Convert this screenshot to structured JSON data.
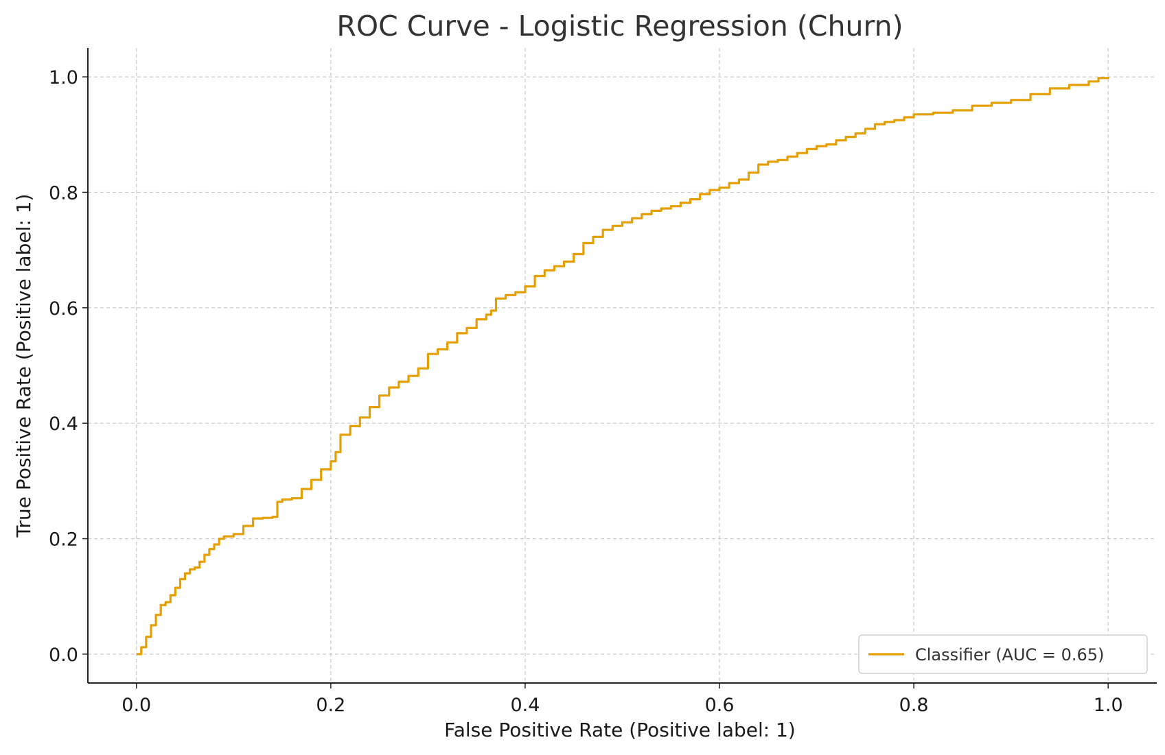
{
  "chart_data": {
    "type": "line",
    "title": "ROC Curve - Logistic Regression (Churn)",
    "xlabel": "False Positive Rate (Positive label: 1)",
    "ylabel": "True Positive Rate (Positive label: 1)",
    "xlim": [
      -0.05,
      1.05
    ],
    "ylim": [
      -0.05,
      1.05
    ],
    "xticks": [
      "0.0",
      "0.2",
      "0.4",
      "0.6",
      "0.8",
      "1.0"
    ],
    "yticks": [
      "0.0",
      "0.2",
      "0.4",
      "0.6",
      "0.8",
      "1.0"
    ],
    "grid": true,
    "legend_position": "lower-right",
    "series": [
      {
        "name": "Classifier (AUC = 0.65)",
        "color": "#e69f00",
        "x": [
          0.0,
          0.005,
          0.01,
          0.015,
          0.02,
          0.025,
          0.03,
          0.035,
          0.04,
          0.045,
          0.05,
          0.055,
          0.06,
          0.065,
          0.07,
          0.075,
          0.08,
          0.085,
          0.09,
          0.1,
          0.11,
          0.12,
          0.13,
          0.14,
          0.145,
          0.15,
          0.16,
          0.17,
          0.18,
          0.19,
          0.2,
          0.205,
          0.21,
          0.22,
          0.23,
          0.24,
          0.25,
          0.26,
          0.27,
          0.28,
          0.29,
          0.3,
          0.31,
          0.32,
          0.33,
          0.34,
          0.35,
          0.36,
          0.365,
          0.37,
          0.38,
          0.39,
          0.4,
          0.41,
          0.42,
          0.43,
          0.44,
          0.45,
          0.46,
          0.47,
          0.48,
          0.49,
          0.5,
          0.51,
          0.52,
          0.53,
          0.54,
          0.55,
          0.56,
          0.57,
          0.58,
          0.59,
          0.6,
          0.61,
          0.62,
          0.63,
          0.64,
          0.65,
          0.66,
          0.67,
          0.68,
          0.69,
          0.7,
          0.71,
          0.72,
          0.73,
          0.74,
          0.75,
          0.76,
          0.77,
          0.78,
          0.79,
          0.8,
          0.82,
          0.84,
          0.86,
          0.88,
          0.9,
          0.92,
          0.94,
          0.96,
          0.98,
          0.99,
          1.0
        ],
        "y": [
          0.0,
          0.012,
          0.03,
          0.05,
          0.068,
          0.085,
          0.09,
          0.102,
          0.115,
          0.13,
          0.14,
          0.147,
          0.15,
          0.16,
          0.172,
          0.182,
          0.19,
          0.2,
          0.204,
          0.208,
          0.222,
          0.235,
          0.236,
          0.238,
          0.264,
          0.268,
          0.27,
          0.286,
          0.302,
          0.32,
          0.334,
          0.35,
          0.38,
          0.395,
          0.41,
          0.428,
          0.448,
          0.462,
          0.472,
          0.482,
          0.495,
          0.52,
          0.528,
          0.54,
          0.556,
          0.565,
          0.58,
          0.588,
          0.595,
          0.616,
          0.622,
          0.627,
          0.637,
          0.655,
          0.665,
          0.672,
          0.68,
          0.693,
          0.712,
          0.723,
          0.735,
          0.742,
          0.748,
          0.755,
          0.762,
          0.768,
          0.772,
          0.776,
          0.782,
          0.788,
          0.797,
          0.804,
          0.808,
          0.816,
          0.822,
          0.834,
          0.848,
          0.853,
          0.856,
          0.862,
          0.868,
          0.875,
          0.88,
          0.883,
          0.89,
          0.896,
          0.902,
          0.91,
          0.918,
          0.922,
          0.925,
          0.93,
          0.935,
          0.938,
          0.942,
          0.95,
          0.955,
          0.96,
          0.97,
          0.98,
          0.986,
          0.992,
          0.998,
          1.0
        ]
      }
    ]
  }
}
